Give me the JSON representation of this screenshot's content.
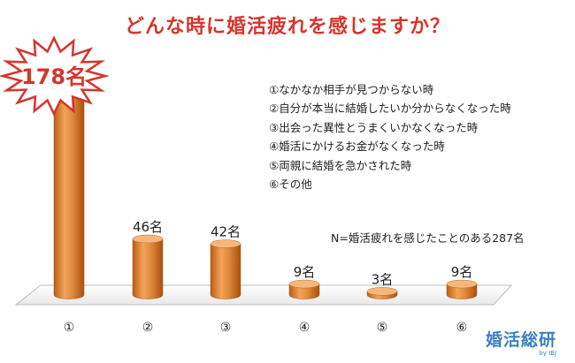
{
  "chart_data": {
    "type": "bar",
    "title": "どんな時に婚活疲れを感じますか？",
    "categories": [
      "①",
      "②",
      "③",
      "④",
      "⑤",
      "⑥"
    ],
    "values": [
      178,
      46,
      42,
      9,
      3,
      9
    ],
    "data_labels": [
      "178名",
      "46名",
      "42名",
      "9名",
      "3名",
      "9名"
    ],
    "legend": [
      "①なかなか相手が見つからない時",
      "②自分が本当に結婚したいか分からなくなった時",
      "③出会った異性とうまくいかなくなった時",
      "④婚活にかけるお金がなくなった時",
      "⑤両親に結婚を急かされた時",
      "⑥その他"
    ],
    "legend_position": "top-right",
    "note": "N=婚活疲れを感じたことのある287名",
    "grid": false,
    "bar_color": "#e2893a",
    "title_color": "#d6352c",
    "highlight_color": "#d6352c"
  },
  "logo": {
    "main": "婚活総研",
    "sub": "by IBJ",
    "color": "#3b7fc4"
  }
}
